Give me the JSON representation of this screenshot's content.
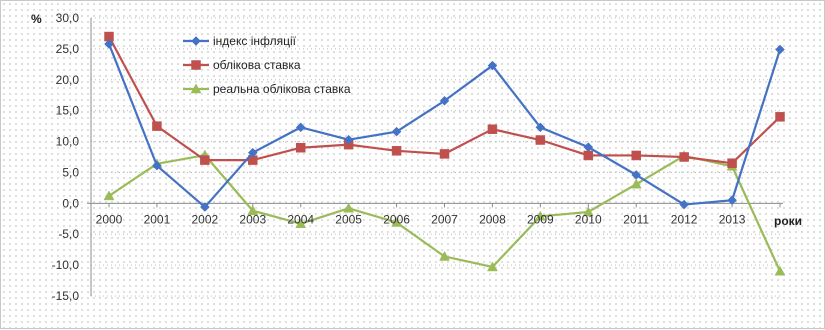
{
  "chart_data": {
    "type": "line",
    "ylabel": "%",
    "xlabel": "роки",
    "ylim": [
      -15,
      30
    ],
    "yticks": [
      30,
      25,
      20,
      15,
      10,
      5,
      0,
      -5,
      -10,
      -15
    ],
    "ytick_labels": [
      "30,0",
      "25,0",
      "20,0",
      "15,0",
      "10,0",
      "5,0",
      "0,0",
      "-5,0",
      "-10,0",
      "-15,0"
    ],
    "categories": [
      "2000",
      "2001",
      "2002",
      "2003",
      "2004",
      "2005",
      "2006",
      "2007",
      "2008",
      "2009",
      "2010",
      "2011",
      "2012",
      "2013",
      "2014"
    ],
    "tick_labels": [
      "2000",
      "2001",
      "2002",
      "2003",
      "2004",
      "2005",
      "2006",
      "2007",
      "2008",
      "2009",
      "2010",
      "2011",
      "2012",
      "2013",
      ""
    ],
    "grid": true,
    "legend_position": "top-left",
    "series": [
      {
        "name": "індекс інфляції",
        "color": "#4472C4",
        "marker": "diamond",
        "values": [
          25.8,
          6.1,
          -0.6,
          8.2,
          12.3,
          10.3,
          11.6,
          16.6,
          22.3,
          12.3,
          9.1,
          4.6,
          -0.2,
          0.5,
          24.9
        ]
      },
      {
        "name": "облікова ставка",
        "color": "#C0504D",
        "marker": "square",
        "values": [
          27.0,
          12.5,
          7.0,
          7.0,
          9.0,
          9.5,
          8.5,
          8.0,
          12.0,
          10.25,
          7.75,
          7.75,
          7.5,
          6.5,
          14.0
        ]
      },
      {
        "name": "реальна  облікова ставка",
        "color": "#9BBB59",
        "marker": "triangle",
        "values": [
          1.2,
          6.4,
          7.8,
          -1.2,
          -3.3,
          -0.8,
          -3.1,
          -8.6,
          -10.3,
          -2.1,
          -1.4,
          3.1,
          7.7,
          6.0,
          -11.0
        ]
      }
    ]
  }
}
